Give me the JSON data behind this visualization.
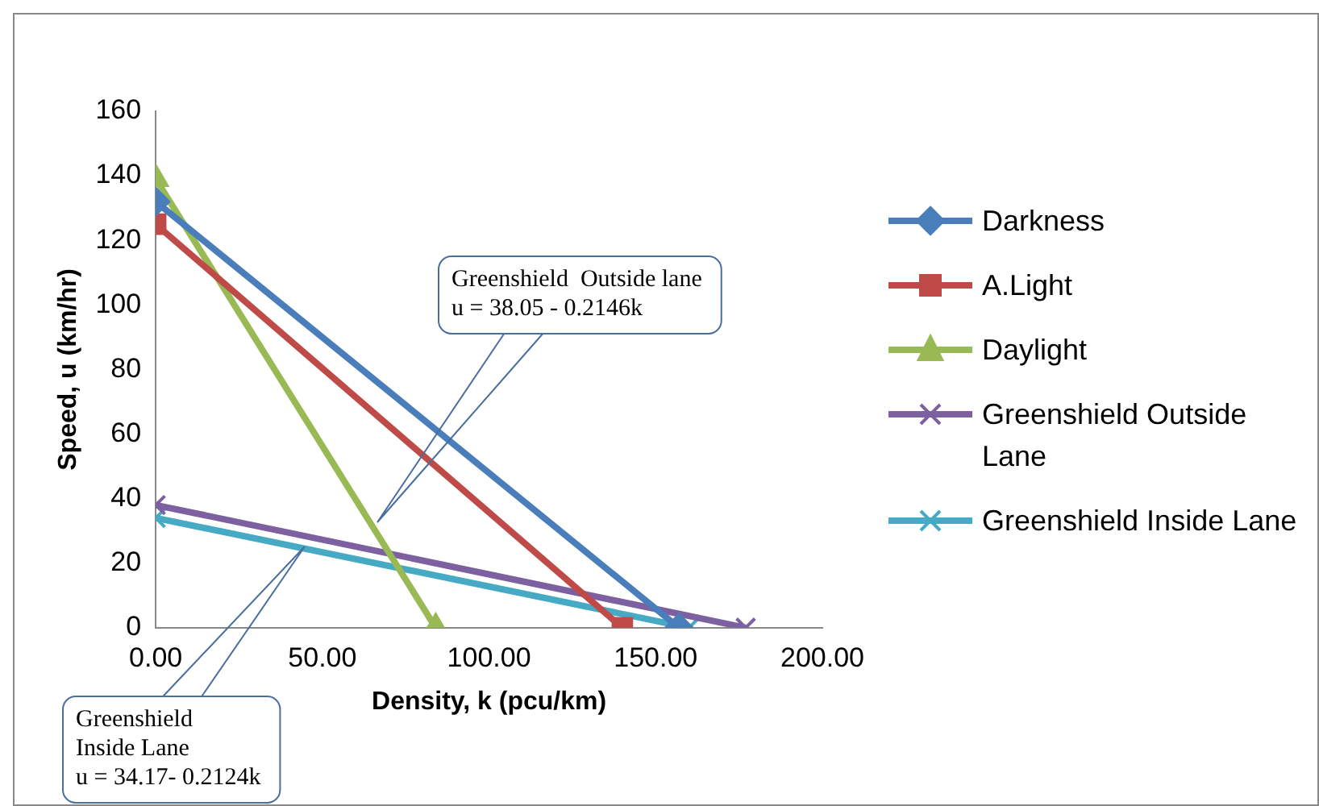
{
  "chart_data": {
    "type": "line",
    "xlabel": "Density, k (pcu/km)",
    "ylabel": "Speed, u (km/hr)",
    "xlim": [
      0,
      200
    ],
    "xticks": [
      {
        "value": 0,
        "label": "0.00"
      },
      {
        "value": 50,
        "label": "50.00"
      },
      {
        "value": 100,
        "label": "100.00"
      },
      {
        "value": 150,
        "label": "150.00"
      },
      {
        "value": 200,
        "label": "200.00"
      }
    ],
    "ylim": [
      0,
      160
    ],
    "yticks": [
      0,
      20,
      40,
      60,
      80,
      100,
      120,
      140,
      160
    ],
    "grid": false,
    "legend": "right",
    "series": [
      {
        "name": "Darkness",
        "color": "#4a7ebb",
        "marker": "diamond",
        "x": [
          0,
          157
        ],
        "values": [
          132,
          0
        ]
      },
      {
        "name": "A.Light",
        "color": "#be4b48",
        "marker": "square",
        "x": [
          0,
          140
        ],
        "values": [
          125,
          0
        ]
      },
      {
        "name": "Daylight",
        "color": "#98b954",
        "marker": "triangle",
        "x": [
          0,
          84
        ],
        "values": [
          139,
          0
        ]
      },
      {
        "name": "Greenshield Outside Lane",
        "color": "#7d60a0",
        "marker": "cross",
        "x": [
          0,
          177
        ],
        "values": [
          38,
          0
        ]
      },
      {
        "name": "Greenshield Inside Lane",
        "color": "#46aac5",
        "marker": "cross",
        "x": [
          0,
          160
        ],
        "values": [
          34,
          0
        ]
      }
    ],
    "annotations": [
      "Greenshield  Outside lane\nu = 38.05 - 0.2146k",
      "Greenshield\nInside Lane\nu = 34.17- 0.2124k"
    ]
  }
}
